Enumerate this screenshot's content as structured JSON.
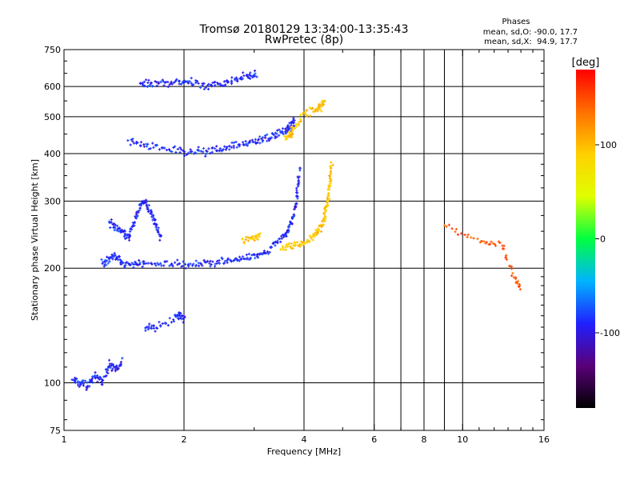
{
  "chart_data": {
    "type": "scatter",
    "title": "Tromsø 20180129 13:34:00-13:35:43",
    "subtitle": "RwPretec (8p)",
    "phase_info": {
      "heading": "Phases",
      "line_o": "mean, sd,O: -90.0, 17.7",
      "line_x": "mean, sd,X:  94.9, 17.7"
    },
    "xlabel": "Frequency [MHz]",
    "ylabel": "Stationary phase Virtual Height [km]",
    "x_scale": "log",
    "y_scale": "log",
    "xlim": [
      1,
      16
    ],
    "ylim": [
      75,
      750
    ],
    "x_ticks": [
      1,
      2,
      4,
      6,
      8,
      10,
      16
    ],
    "x_ticks_major": [
      2,
      4,
      6,
      8,
      10
    ],
    "x_ticks_minor": [
      7,
      9
    ],
    "y_ticks": [
      75,
      100,
      200,
      300,
      400,
      500,
      600,
      750
    ],
    "y_ticks_major": [
      100,
      200,
      300,
      400,
      500,
      600
    ],
    "grid": true,
    "colorbar": {
      "label": "[deg]",
      "range": [
        -180,
        180
      ],
      "ticks": [
        100,
        0,
        -100
      ],
      "colors": [
        "#000000",
        "#5a007a",
        "#2020ff",
        "#00b4ff",
        "#00ff40",
        "#e0ff00",
        "#ffd000",
        "#ff7000",
        "#ff0000"
      ]
    },
    "series": [
      {
        "phase_mean": -90,
        "traces": [
          {
            "x": [
              1.05,
              1.1,
              1.15,
              1.2,
              1.25,
              1.3,
              1.35,
              1.4
            ],
            "y": [
              102,
              100,
              98,
              105,
              100,
              112,
              108,
              115
            ]
          },
          {
            "x": [
              1.25,
              1.3,
              1.35,
              1.4,
              1.5,
              1.6,
              1.8,
              2.0,
              2.2,
              2.4,
              2.6,
              2.8,
              3.0,
              3.2,
              3.4,
              3.6,
              3.7,
              3.8,
              3.85,
              3.9
            ],
            "y": [
              205,
              212,
              215,
              205,
              205,
              206,
              205,
              204,
              205,
              207,
              210,
              212,
              214,
              220,
              230,
              245,
              260,
              285,
              320,
              370
            ]
          },
          {
            "x": [
              1.3,
              1.35,
              1.4,
              1.45,
              1.5,
              1.55,
              1.6,
              1.65,
              1.7,
              1.75
            ],
            "y": [
              265,
              255,
              250,
              240,
              265,
              290,
              300,
              280,
              260,
              240
            ]
          },
          {
            "x": [
              1.45,
              1.6,
              1.8,
              2.0,
              2.2,
              2.4,
              2.6,
              2.8,
              3.0,
              3.2,
              3.4,
              3.6,
              3.7,
              3.8
            ],
            "y": [
              430,
              420,
              412,
              407,
              405,
              410,
              415,
              420,
              430,
              440,
              450,
              460,
              470,
              490
            ]
          },
          {
            "x": [
              1.55,
              1.65,
              1.8,
              1.95,
              2.1,
              2.3,
              2.5,
              2.7,
              2.9,
              3.05
            ],
            "y": [
              613,
              610,
              612,
              620,
              615,
              605,
              612,
              625,
              640,
              645
            ]
          },
          {
            "x": [
              1.6,
              1.7,
              1.9,
              1.95,
              2.0
            ],
            "y": [
              140,
              140,
              148,
              150,
              148
            ]
          }
        ]
      },
      {
        "phase_mean": 95,
        "traces": [
          {
            "x": [
              3.5,
              3.7,
              3.9,
              4.1,
              4.3,
              4.4,
              4.5,
              4.55,
              4.6,
              4.65,
              4.7
            ],
            "y": [
              225,
              228,
              232,
              237,
              245,
              255,
              270,
              290,
              310,
              340,
              380
            ]
          },
          {
            "x": [
              3.6,
              3.7,
              3.75,
              4.0,
              4.3,
              4.4,
              4.5
            ],
            "y": [
              440,
              450,
              460,
              510,
              520,
              530,
              550
            ]
          },
          {
            "x": [
              2.8,
              3.0,
              3.1
            ],
            "y": [
              235,
              240,
              245
            ]
          }
        ]
      },
      {
        "phase_mean": 150,
        "traces": [
          {
            "x": [
              9.0,
              11.0,
              12.5,
              13.5,
              14.0
            ],
            "y": [
              260,
              235,
              230,
              190,
              175
            ]
          }
        ]
      }
    ]
  }
}
